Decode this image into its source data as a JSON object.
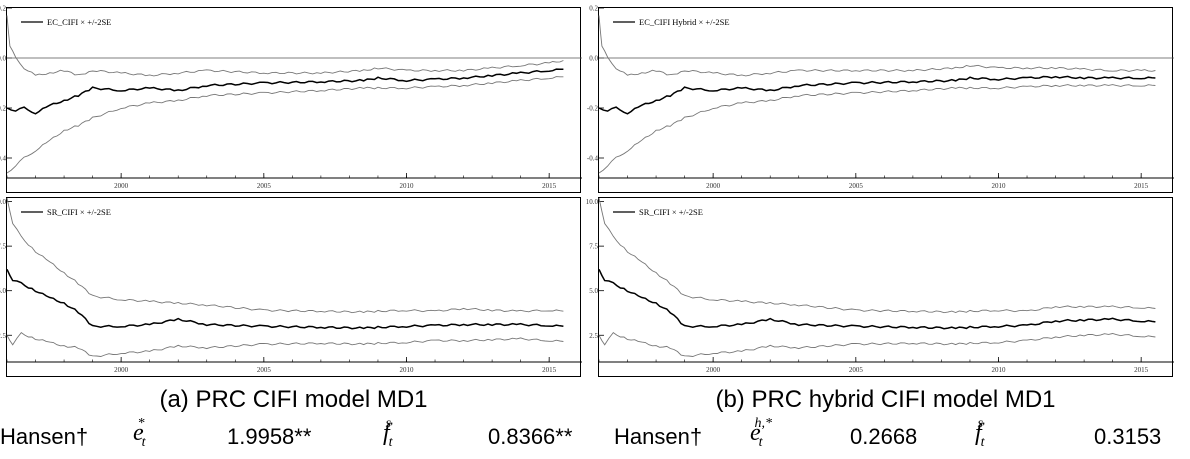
{
  "chart_data": [
    {
      "id": "ec_cifi",
      "type": "line",
      "legend": "EC_CIFI × +/-2SE",
      "legend_position": "top-left",
      "xlim": [
        1996,
        2015.8
      ],
      "ylim": [
        -0.48,
        0.2
      ],
      "x_ticks": [
        "2000",
        "2005",
        "2010",
        "2015"
      ],
      "y_ticks": [
        "0.2",
        "0.0",
        "-0.2",
        "-0.4"
      ],
      "reference_line": 0,
      "series": [
        {
          "role": "upper",
          "color": "#777777",
          "x": [
            1996.0,
            1996.1,
            1996.3,
            1996.6,
            1997.0,
            1997.5,
            1998.0,
            1998.5,
            1999.0,
            2000.0,
            2001.0,
            2002.0,
            2003.0,
            2005.0,
            2007.0,
            2008.5,
            2009.0,
            2010.0,
            2011.0,
            2012.0,
            2013.0,
            2014.0,
            2015.0,
            2015.5
          ],
          "y": [
            0.17,
            0.05,
            0.0,
            -0.04,
            -0.07,
            -0.06,
            -0.05,
            -0.07,
            -0.05,
            -0.06,
            -0.07,
            -0.06,
            -0.05,
            -0.06,
            -0.06,
            -0.05,
            -0.04,
            -0.05,
            -0.05,
            -0.05,
            -0.04,
            -0.03,
            -0.02,
            -0.01
          ]
        },
        {
          "role": "estimate",
          "color": "#000000",
          "x": [
            1996.0,
            1996.3,
            1996.6,
            1997.0,
            1997.5,
            1998.0,
            1998.5,
            1999.0,
            2000.0,
            2001.0,
            2002.0,
            2003.0,
            2005.0,
            2007.0,
            2008.5,
            2009.0,
            2010.0,
            2011.0,
            2012.0,
            2013.0,
            2014.0,
            2015.0,
            2015.5
          ],
          "y": [
            -0.2,
            -0.21,
            -0.2,
            -0.22,
            -0.19,
            -0.17,
            -0.15,
            -0.12,
            -0.13,
            -0.12,
            -0.13,
            -0.11,
            -0.1,
            -0.095,
            -0.09,
            -0.08,
            -0.09,
            -0.085,
            -0.08,
            -0.07,
            -0.06,
            -0.05,
            -0.045
          ]
        },
        {
          "role": "lower",
          "color": "#777777",
          "x": [
            1996.0,
            1996.3,
            1996.6,
            1997.0,
            1997.5,
            1998.0,
            1998.5,
            1999.0,
            2000.0,
            2001.0,
            2002.0,
            2003.0,
            2005.0,
            2007.0,
            2008.5,
            2009.0,
            2010.0,
            2011.0,
            2012.0,
            2013.0,
            2014.0,
            2015.0,
            2015.5
          ],
          "y": [
            -0.46,
            -0.43,
            -0.4,
            -0.37,
            -0.33,
            -0.29,
            -0.27,
            -0.24,
            -0.2,
            -0.18,
            -0.17,
            -0.15,
            -0.14,
            -0.13,
            -0.12,
            -0.12,
            -0.12,
            -0.115,
            -0.11,
            -0.1,
            -0.09,
            -0.08,
            -0.075
          ]
        }
      ]
    },
    {
      "id": "ec_cifi_hybrid",
      "type": "line",
      "legend": "EC_CIFI Hybrid × +/-2SE",
      "legend_position": "top-left",
      "xlim": [
        1996,
        2015.8
      ],
      "ylim": [
        -0.48,
        0.2
      ],
      "x_ticks": [
        "2000",
        "2005",
        "2010",
        "2015"
      ],
      "y_ticks": [
        "0.2",
        "0.0",
        "-0.2",
        "-0.4"
      ],
      "reference_line": 0,
      "series": [
        {
          "role": "upper",
          "color": "#777777",
          "x": [
            1996.0,
            1996.1,
            1996.3,
            1996.6,
            1997.0,
            1997.5,
            1998.0,
            1998.5,
            1999.0,
            2000.0,
            2001.0,
            2002.0,
            2003.0,
            2005.0,
            2007.0,
            2008.5,
            2009.0,
            2010.0,
            2011.0,
            2012.0,
            2013.0,
            2014.0,
            2015.0,
            2015.5
          ],
          "y": [
            0.17,
            0.05,
            0.0,
            -0.04,
            -0.07,
            -0.06,
            -0.05,
            -0.07,
            -0.05,
            -0.06,
            -0.07,
            -0.06,
            -0.05,
            -0.05,
            -0.05,
            -0.04,
            -0.03,
            -0.04,
            -0.04,
            -0.04,
            -0.045,
            -0.05,
            -0.05,
            -0.05
          ]
        },
        {
          "role": "estimate",
          "color": "#000000",
          "x": [
            1996.0,
            1996.3,
            1996.6,
            1997.0,
            1997.5,
            1998.0,
            1998.5,
            1999.0,
            2000.0,
            2001.0,
            2002.0,
            2003.0,
            2005.0,
            2007.0,
            2008.5,
            2009.0,
            2010.0,
            2011.0,
            2012.0,
            2013.0,
            2014.0,
            2015.0,
            2015.5
          ],
          "y": [
            -0.2,
            -0.21,
            -0.2,
            -0.22,
            -0.19,
            -0.17,
            -0.15,
            -0.12,
            -0.13,
            -0.12,
            -0.13,
            -0.11,
            -0.1,
            -0.095,
            -0.09,
            -0.08,
            -0.085,
            -0.08,
            -0.075,
            -0.08,
            -0.08,
            -0.08,
            -0.08
          ]
        },
        {
          "role": "lower",
          "color": "#777777",
          "x": [
            1996.0,
            1996.3,
            1996.6,
            1997.0,
            1997.5,
            1998.0,
            1998.5,
            1999.0,
            2000.0,
            2001.0,
            2002.0,
            2003.0,
            2005.0,
            2007.0,
            2008.5,
            2009.0,
            2010.0,
            2011.0,
            2012.0,
            2013.0,
            2014.0,
            2015.0,
            2015.5
          ],
          "y": [
            -0.46,
            -0.43,
            -0.4,
            -0.37,
            -0.33,
            -0.29,
            -0.27,
            -0.24,
            -0.2,
            -0.18,
            -0.17,
            -0.15,
            -0.14,
            -0.13,
            -0.12,
            -0.12,
            -0.12,
            -0.115,
            -0.11,
            -0.11,
            -0.11,
            -0.11,
            -0.11
          ]
        }
      ]
    },
    {
      "id": "sr_cifi",
      "type": "line",
      "legend": "SR_CIFI × +/-2SE",
      "legend_position": "top-left",
      "xlim": [
        1996,
        2015.8
      ],
      "ylim": [
        1.0,
        10.2
      ],
      "x_ticks": [
        "2000",
        "2005",
        "2010",
        "2015"
      ],
      "y_ticks": [
        "10.0",
        "7.5",
        "5.0",
        "2.5"
      ],
      "series": [
        {
          "role": "upper",
          "color": "#777777",
          "x": [
            1996.0,
            1996.2,
            1996.5,
            1997.0,
            1997.5,
            1998.0,
            1998.5,
            1999.0,
            2000.0,
            2001.0,
            2002.0,
            2003.0,
            2005.0,
            2007.0,
            2008.5,
            2009.0,
            2010.0,
            2011.0,
            2012.0,
            2013.0,
            2014.0,
            2015.0,
            2015.5
          ],
          "y": [
            10.2,
            8.8,
            8.0,
            7.2,
            6.6,
            6.0,
            5.4,
            4.7,
            4.5,
            4.4,
            4.3,
            4.2,
            3.9,
            3.85,
            3.8,
            3.85,
            3.9,
            3.85,
            4.0,
            3.9,
            3.85,
            3.9,
            3.85
          ]
        },
        {
          "role": "estimate",
          "color": "#000000",
          "x": [
            1996.0,
            1996.2,
            1996.5,
            1997.0,
            1997.5,
            1998.0,
            1998.5,
            1999.0,
            2000.0,
            2001.0,
            2002.0,
            2003.0,
            2005.0,
            2007.0,
            2008.5,
            2009.0,
            2010.0,
            2011.0,
            2012.0,
            2013.0,
            2014.0,
            2015.0,
            2015.5
          ],
          "y": [
            6.2,
            5.6,
            5.4,
            5.0,
            4.6,
            4.3,
            3.8,
            3.0,
            3.0,
            3.1,
            3.4,
            3.1,
            3.0,
            2.95,
            2.9,
            2.95,
            3.0,
            3.05,
            3.1,
            3.1,
            3.1,
            3.05,
            3.0
          ]
        },
        {
          "role": "lower",
          "color": "#777777",
          "x": [
            1996.0,
            1996.2,
            1996.5,
            1997.0,
            1997.5,
            1998.0,
            1998.5,
            1999.0,
            2000.0,
            2001.0,
            2002.0,
            2003.0,
            2005.0,
            2007.0,
            2008.5,
            2009.0,
            2010.0,
            2011.0,
            2012.0,
            2013.0,
            2014.0,
            2015.0,
            2015.5
          ],
          "y": [
            2.5,
            2.0,
            2.6,
            2.3,
            2.1,
            1.9,
            1.8,
            1.3,
            1.5,
            1.6,
            1.9,
            1.8,
            2.0,
            2.05,
            2.0,
            2.05,
            2.1,
            2.2,
            2.2,
            2.25,
            2.3,
            2.2,
            2.15
          ]
        }
      ]
    },
    {
      "id": "sr_cifi_hybrid",
      "type": "line",
      "legend": "SR_CIFI × +/-2SE",
      "legend_position": "top-left",
      "xlim": [
        1996,
        2015.8
      ],
      "ylim": [
        1.0,
        10.2
      ],
      "x_ticks": [
        "2000",
        "2005",
        "2010",
        "2015"
      ],
      "y_ticks": [
        "10.0",
        "7.5",
        "5.0",
        "2.5"
      ],
      "series": [
        {
          "role": "upper",
          "color": "#777777",
          "x": [
            1996.0,
            1996.2,
            1996.5,
            1997.0,
            1997.5,
            1998.0,
            1998.5,
            1999.0,
            2000.0,
            2001.0,
            2002.0,
            2003.0,
            2005.0,
            2007.0,
            2008.5,
            2009.0,
            2010.0,
            2011.0,
            2012.0,
            2013.0,
            2014.0,
            2015.0,
            2015.5
          ],
          "y": [
            10.2,
            8.8,
            8.0,
            7.2,
            6.6,
            6.0,
            5.4,
            4.7,
            4.5,
            4.4,
            4.3,
            4.2,
            3.9,
            3.85,
            3.8,
            3.85,
            3.9,
            3.85,
            4.1,
            4.1,
            4.1,
            4.05,
            4.0
          ]
        },
        {
          "role": "estimate",
          "color": "#000000",
          "x": [
            1996.0,
            1996.2,
            1996.5,
            1997.0,
            1997.5,
            1998.0,
            1998.5,
            1999.0,
            2000.0,
            2001.0,
            2002.0,
            2003.0,
            2005.0,
            2007.0,
            2008.5,
            2009.0,
            2010.0,
            2011.0,
            2012.0,
            2013.0,
            2014.0,
            2015.0,
            2015.5
          ],
          "y": [
            6.2,
            5.6,
            5.4,
            5.0,
            4.6,
            4.3,
            3.8,
            3.0,
            3.0,
            3.1,
            3.4,
            3.1,
            3.0,
            2.95,
            2.9,
            2.95,
            3.0,
            3.05,
            3.3,
            3.35,
            3.4,
            3.3,
            3.25
          ]
        },
        {
          "role": "lower",
          "color": "#777777",
          "x": [
            1996.0,
            1996.2,
            1996.5,
            1997.0,
            1997.5,
            1998.0,
            1998.5,
            1999.0,
            2000.0,
            2001.0,
            2002.0,
            2003.0,
            2005.0,
            2007.0,
            2008.5,
            2009.0,
            2010.0,
            2011.0,
            2012.0,
            2013.0,
            2014.0,
            2015.0,
            2015.5
          ],
          "y": [
            2.5,
            2.0,
            2.6,
            2.3,
            2.1,
            1.9,
            1.8,
            1.3,
            1.5,
            1.6,
            1.9,
            1.8,
            2.0,
            2.05,
            2.0,
            2.05,
            2.1,
            2.2,
            2.4,
            2.5,
            2.55,
            2.45,
            2.4
          ]
        }
      ]
    }
  ],
  "captions": {
    "a": "(a) PRC CIFI model MD1",
    "b": "(b) PRC hybrid CIFI model MD1"
  },
  "stats": {
    "a": {
      "label": "Hansen†",
      "e_base": "e",
      "e_sub": "t",
      "e_sup": "*",
      "e_value": "1.9958**",
      "f_base": "f",
      "f_sub": "t",
      "f_sup": "s",
      "f_value": "0.8366**"
    },
    "b": {
      "label": "Hansen†",
      "e_base": "e",
      "e_sub": "t",
      "e_sup": "h,*",
      "e_value": "0.2668",
      "f_base": "f",
      "f_sub": "t",
      "f_sup": "s",
      "f_value": "0.3153"
    }
  }
}
